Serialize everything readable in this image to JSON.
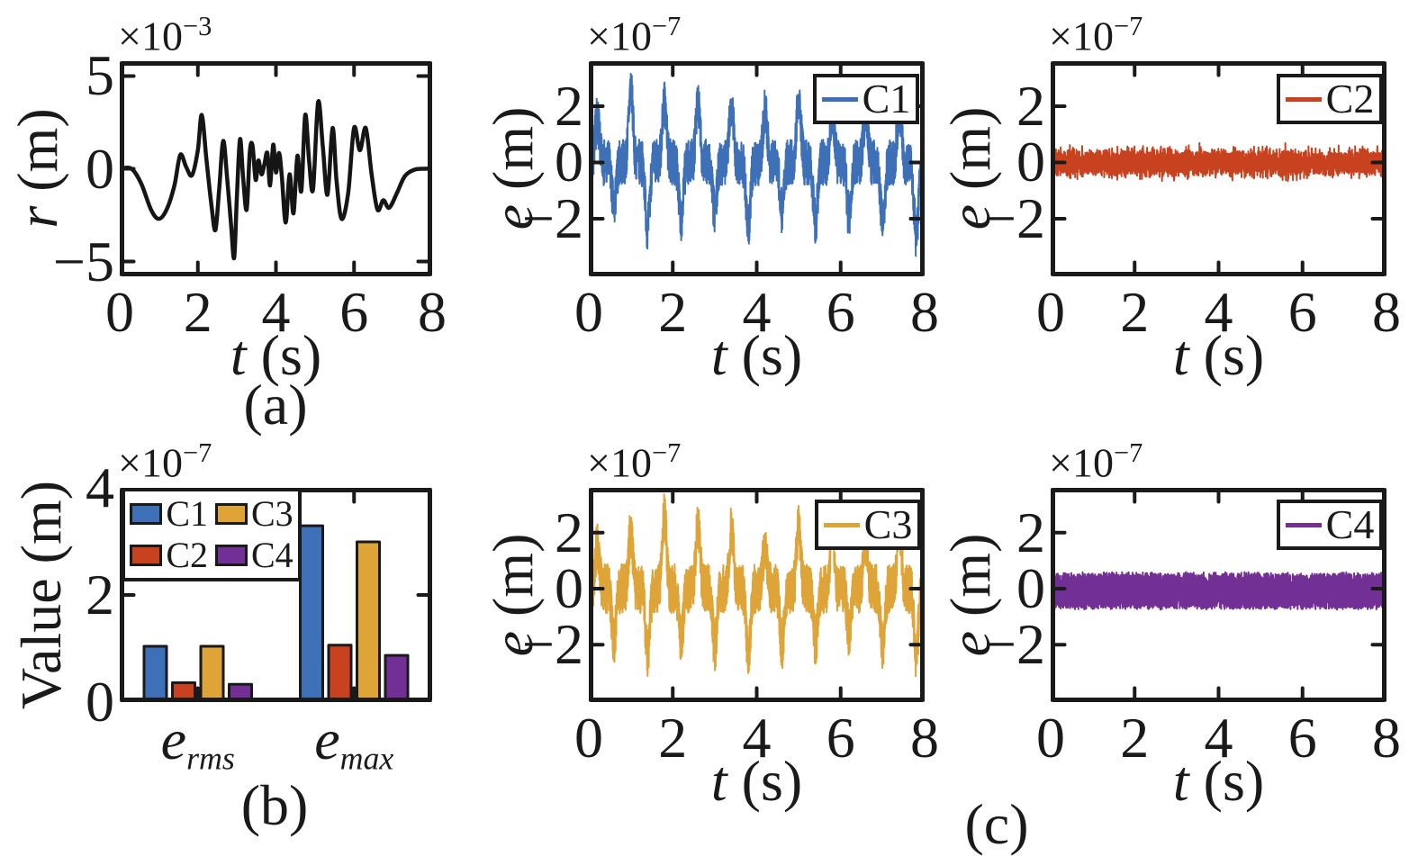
{
  "figure": {
    "background": "#ffffff",
    "text_color": "#1a1a1a",
    "axis_color": "#1a1a1a",
    "panel_labels": {
      "a": "(a)",
      "b": "(b)",
      "c": "(c)"
    }
  },
  "chart_data": {
    "a": {
      "type": "line",
      "series_name": "r",
      "color": "#151515",
      "line_width": 4.5,
      "exponent": {
        "base": "×10",
        "power": "−3"
      },
      "ylabel": {
        "var": "r",
        "unit": " (m)"
      },
      "xlabel": {
        "var": "t",
        "unit": " (s)"
      },
      "xlim": [
        0,
        8
      ],
      "ylim": [
        -5.8,
        5.8
      ],
      "xtick_values": [
        0,
        2,
        4,
        6,
        8
      ],
      "xtick_labels": [
        "0",
        "2",
        "4",
        "6",
        "8"
      ],
      "ytick_values": [
        5,
        0,
        -5
      ],
      "ytick_labels": [
        "5",
        "0",
        "−5"
      ],
      "t": [
        0,
        0.3,
        0.55,
        0.8,
        1.0,
        1.2,
        1.4,
        1.55,
        1.7,
        1.85,
        2.0,
        2.1,
        2.22,
        2.35,
        2.45,
        2.55,
        2.65,
        2.75,
        2.85,
        2.93,
        3.0,
        3.08,
        3.16,
        3.25,
        3.33,
        3.4,
        3.48,
        3.55,
        3.63,
        3.7,
        3.78,
        3.85,
        3.93,
        4.0,
        4.08,
        4.15,
        4.25,
        4.35,
        4.45,
        4.55,
        4.65,
        4.75,
        4.85,
        4.95,
        5.08,
        5.2,
        5.32,
        5.45,
        5.55,
        5.68,
        5.85,
        6.0,
        6.15,
        6.3,
        6.45,
        6.6,
        6.75,
        6.9,
        7.1,
        7.3,
        7.55,
        7.8,
        8.0
      ],
      "y": [
        0,
        0,
        -0.8,
        -2.2,
        -2.7,
        -2.2,
        -0.9,
        0.75,
        0.1,
        -0.35,
        1.0,
        2.9,
        0.5,
        -2.0,
        -3.3,
        -1.0,
        1.5,
        -0.5,
        -3.0,
        -4.8,
        -1.5,
        1.6,
        -0.5,
        -2.2,
        0.9,
        1.25,
        -0.6,
        0.45,
        -0.3,
        0.2,
        0.85,
        -0.9,
        1.3,
        -0.2,
        0.85,
        -0.4,
        -2.9,
        -0.3,
        -2.4,
        0.7,
        -1.2,
        2.9,
        0.4,
        -1.1,
        3.6,
        1.2,
        -1.4,
        2.2,
        -0.6,
        -2.7,
        -1.3,
        2.2,
        1.0,
        2.2,
        -0.3,
        -2.2,
        -1.7,
        -2.1,
        -1.3,
        -0.4,
        -0.05,
        0,
        0
      ]
    },
    "c1": {
      "type": "line",
      "legend": "C1",
      "color": "#3e70b8",
      "line_width": 2,
      "exponent": {
        "base": "×10",
        "power": "−7"
      },
      "ylabel": {
        "var": "e",
        "unit": " (m)"
      },
      "xlabel": {
        "var": "t",
        "unit": " (s)"
      },
      "xlim": [
        0,
        8
      ],
      "ylim": [
        -4.05,
        3.6
      ],
      "xtick_values": [
        0,
        2,
        4,
        6,
        8
      ],
      "xtick_labels": [
        "0",
        "2",
        "4",
        "6",
        "8"
      ],
      "ytick_values": [
        2,
        0,
        -2
      ],
      "ytick_labels": [
        "2",
        "0",
        "−2"
      ],
      "signal": {
        "kind": "burst",
        "seed": 7,
        "n": 2600,
        "amp": 2.1,
        "period": 0.8,
        "sharp": 6,
        "noise": 0.82
      },
      "stats": {
        "e_rms": 1.0,
        "e_max": 3.25
      }
    },
    "c2": {
      "type": "line",
      "legend": "C2",
      "color": "#c9421f",
      "line_width": 2,
      "exponent": {
        "base": "×10",
        "power": "−7"
      },
      "ylabel": {
        "var": "e",
        "unit": " (m)"
      },
      "xlabel": {
        "var": "t",
        "unit": " (s)"
      },
      "xlim": [
        0,
        8
      ],
      "ylim": [
        -4.05,
        3.6
      ],
      "xtick_values": [
        0,
        2,
        4,
        6,
        8
      ],
      "xtick_labels": [
        "0",
        "2",
        "4",
        "6",
        "8"
      ],
      "ytick_values": [
        2,
        0,
        -2
      ],
      "ytick_labels": [
        "2",
        "0",
        "−2"
      ],
      "signal": {
        "kind": "noise",
        "seed": 41,
        "n": 3200,
        "core": 0.32,
        "spread": 0.42,
        "spike_p": 0.004,
        "spike_gain": 1.5
      },
      "stats": {
        "e_rms": 0.32,
        "e_max": 1.02
      }
    },
    "b": {
      "type": "bar",
      "exponent": {
        "base": "×10",
        "power": "−7"
      },
      "ylabel": "Value (m)",
      "ylim": [
        0,
        4
      ],
      "ytick_values": [
        0,
        2,
        4
      ],
      "ytick_labels": [
        "0",
        "2",
        "4"
      ],
      "categories": [
        {
          "base": "e",
          "sub": "rms"
        },
        {
          "base": "e",
          "sub": "max"
        }
      ],
      "categories_text": [
        "e_rms",
        "e_max"
      ],
      "series": [
        {
          "name": "C1",
          "color": "#3e70b8",
          "values": [
            1.0,
            3.25
          ]
        },
        {
          "name": "C2",
          "color": "#c9421f",
          "values": [
            0.32,
            1.02
          ]
        },
        {
          "name": "C3",
          "color": "#dea437",
          "values": [
            1.0,
            2.95
          ]
        },
        {
          "name": "C4",
          "color": "#722f95",
          "values": [
            0.29,
            0.83
          ]
        }
      ],
      "legend_labels": [
        "C1",
        "C2",
        "C3",
        "C4"
      ]
    },
    "c3": {
      "type": "line",
      "legend": "C3",
      "color": "#dea437",
      "line_width": 2,
      "exponent": {
        "base": "×10",
        "power": "−7"
      },
      "ylabel": {
        "var": "e",
        "unit": " (m)"
      },
      "xlabel": {
        "var": "t",
        "unit": " (s)"
      },
      "xlim": [
        0,
        8
      ],
      "ylim": [
        -4.05,
        3.6
      ],
      "xtick_values": [
        0,
        2,
        4,
        6,
        8
      ],
      "xtick_labels": [
        "0",
        "2",
        "4",
        "6",
        "8"
      ],
      "ytick_values": [
        2,
        0,
        -2
      ],
      "ytick_labels": [
        "2",
        "0",
        "−2"
      ],
      "signal": {
        "kind": "burst",
        "seed": 19,
        "n": 2600,
        "amp": 2.05,
        "period": 0.8,
        "sharp": 6,
        "noise": 0.88
      },
      "stats": {
        "e_rms": 1.0,
        "e_max": 2.95
      }
    },
    "c4": {
      "type": "line",
      "legend": "C4",
      "color": "#722f95",
      "line_width": 2,
      "exponent": {
        "base": "×10",
        "power": "−7"
      },
      "ylabel": {
        "var": "e",
        "unit": " (m)"
      },
      "xlabel": {
        "var": "t",
        "unit": " (s)"
      },
      "xlim": [
        0,
        8
      ],
      "ylim": [
        -4.05,
        3.6
      ],
      "xtick_values": [
        0,
        2,
        4,
        6,
        8
      ],
      "xtick_labels": [
        "0",
        "2",
        "4",
        "6",
        "8"
      ],
      "ytick_values": [
        2,
        0,
        -2
      ],
      "ytick_labels": [
        "2",
        "0",
        "−2"
      ],
      "signal": {
        "kind": "band",
        "seed": 57,
        "n": 5200,
        "amp": 0.58,
        "spread": 0.1,
        "offset": -0.08
      },
      "stats": {
        "e_rms": 0.29,
        "e_max": 0.83
      }
    }
  }
}
